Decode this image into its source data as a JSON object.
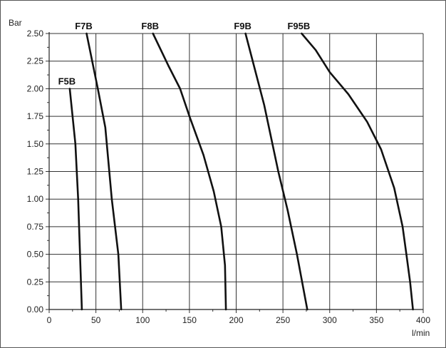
{
  "chart_data": {
    "type": "line",
    "xlabel": "l/min",
    "ylabel": "Bar",
    "xlim": [
      0,
      400
    ],
    "ylim": [
      0,
      2.5
    ],
    "x_ticks": [
      "0",
      "50",
      "100",
      "150",
      "200",
      "250",
      "300",
      "350",
      "400"
    ],
    "y_ticks": [
      "0.00",
      "0.25",
      "0.50",
      "0.75",
      "1.00",
      "1.25",
      "1.50",
      "1.75",
      "2.00",
      "2.25",
      "2.50"
    ],
    "grid": true,
    "series": [
      {
        "name": "F5B",
        "points": [
          [
            22,
            2.0
          ],
          [
            28,
            1.5
          ],
          [
            31,
            1.0
          ],
          [
            33,
            0.5
          ],
          [
            35,
            0.0
          ]
        ]
      },
      {
        "name": "F7B",
        "points": [
          [
            40,
            2.5
          ],
          [
            52,
            2.0
          ],
          [
            60,
            1.65
          ],
          [
            67,
            1.0
          ],
          [
            74,
            0.5
          ],
          [
            77,
            0.0
          ]
        ]
      },
      {
        "name": "F8B",
        "points": [
          [
            111,
            2.5
          ],
          [
            128,
            2.2
          ],
          [
            140,
            2.0
          ],
          [
            150,
            1.75
          ],
          [
            165,
            1.4
          ],
          [
            176,
            1.07
          ],
          [
            184,
            0.75
          ],
          [
            188,
            0.4
          ],
          [
            189,
            0.0
          ]
        ]
      },
      {
        "name": "F9B",
        "points": [
          [
            210,
            2.5
          ],
          [
            230,
            1.85
          ],
          [
            245,
            1.25
          ],
          [
            255,
            0.9
          ],
          [
            265,
            0.5
          ],
          [
            276,
            0.0
          ]
        ]
      },
      {
        "name": "F95B",
        "points": [
          [
            270,
            2.5
          ],
          [
            285,
            2.35
          ],
          [
            300,
            2.15
          ],
          [
            320,
            1.95
          ],
          [
            340,
            1.7
          ],
          [
            355,
            1.45
          ],
          [
            369,
            1.1
          ],
          [
            378,
            0.75
          ],
          [
            382,
            0.5
          ],
          [
            386,
            0.25
          ],
          [
            389,
            0.0
          ]
        ]
      }
    ]
  }
}
